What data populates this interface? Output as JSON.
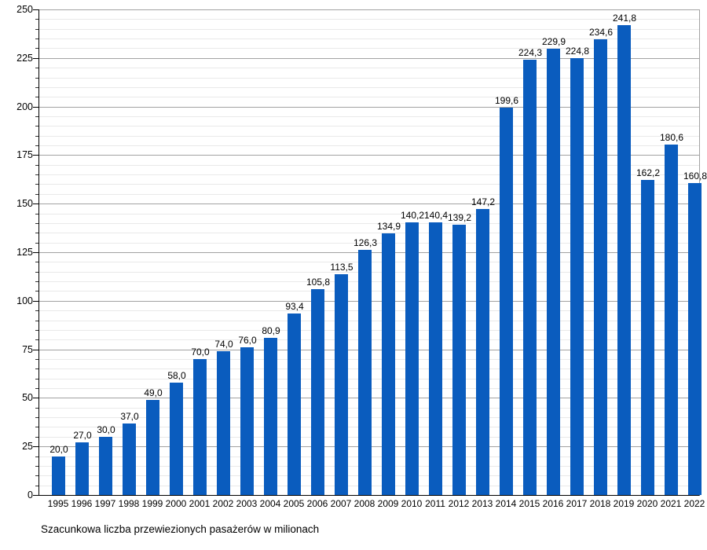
{
  "chart_data": {
    "type": "bar",
    "title": "Szacunkowa liczba przewiezionych pasażerów w milionach",
    "categories": [
      "1995",
      "1996",
      "1997",
      "1998",
      "1999",
      "2000",
      "2001",
      "2002",
      "2003",
      "2004",
      "2005",
      "2006",
      "2007",
      "2008",
      "2009",
      "2010",
      "2011",
      "2012",
      "2013",
      "2014",
      "2015",
      "2016",
      "2017",
      "2018",
      "2019",
      "2020",
      "2021",
      "2022"
    ],
    "values": [
      20.0,
      27.0,
      30.0,
      37.0,
      49.0,
      58.0,
      70.0,
      74.0,
      76.0,
      80.9,
      93.4,
      105.8,
      113.5,
      126.3,
      134.9,
      140.2,
      140.4,
      139.2,
      147.2,
      199.6,
      224.3,
      229.9,
      224.8,
      234.6,
      241.8,
      162.2,
      180.6,
      160.8
    ],
    "value_labels": [
      "20,0",
      "27,0",
      "30,0",
      "37,0",
      "49,0",
      "58,0",
      "70,0",
      "74,0",
      "76,0",
      "80,9",
      "93,4",
      "105,8",
      "113,5",
      "126,3",
      "134,9",
      "140,2",
      "140,4",
      "139,2",
      "147,2",
      "199,6",
      "224,3",
      "229,9",
      "224,8",
      "234,6",
      "241,8",
      "162,2",
      "180,6",
      "160,8"
    ],
    "y_tick_labels": [
      "0",
      "25",
      "50",
      "75",
      "100",
      "125",
      "150",
      "175",
      "200",
      "225",
      "250"
    ],
    "xlabel": "",
    "ylabel": "",
    "ylim": [
      0,
      250
    ],
    "y_major_step": 25,
    "y_minor_step": 5,
    "grid": "on",
    "legend": "none",
    "colors": {
      "bar": "#0a5cbe",
      "major_grid": "#a2a2a2",
      "minor_grid": "#e9e9e9",
      "axis": "#000000",
      "frame_right": "#a2a2a2",
      "text": "#000000",
      "background": "#ffffff"
    }
  }
}
